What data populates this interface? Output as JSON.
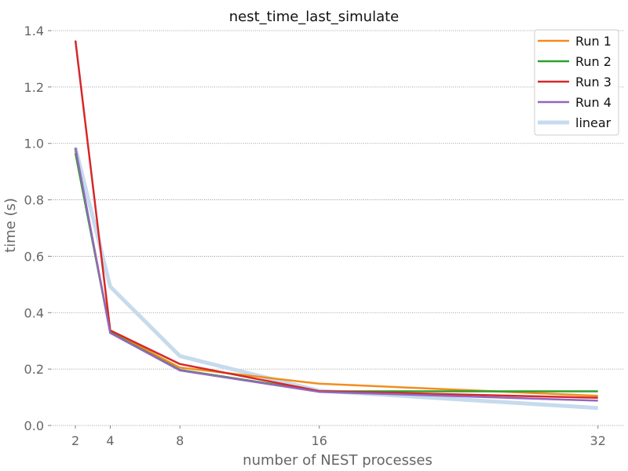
{
  "chart_data": {
    "type": "line",
    "title": "nest_time_last_simulate",
    "xlabel": "number of NEST processes",
    "ylabel": "time (s)",
    "x": [
      2,
      4,
      8,
      16,
      32
    ],
    "xticks": [
      2,
      4,
      8,
      16,
      32
    ],
    "yticks": [
      0.0,
      0.2,
      0.4,
      0.6,
      0.8,
      1.0,
      1.2,
      1.4
    ],
    "ytick_labels": [
      "0.0",
      "0.2",
      "0.4",
      "0.6",
      "0.8",
      "1.0",
      "1.2",
      "1.4"
    ],
    "ylim": [
      0,
      1.4
    ],
    "grid": "horizontal dotted",
    "legend_position": "top-right",
    "series": [
      {
        "name": "linear",
        "color": "#c6dbed",
        "width": 5,
        "values": [
          0.985,
          0.4925,
          0.246,
          0.123,
          0.062
        ]
      },
      {
        "name": "Run 1",
        "color": "#f28d1f",
        "width": 2.5,
        "values": [
          0.975,
          0.335,
          0.205,
          0.148,
          0.105
        ]
      },
      {
        "name": "Run 2",
        "color": "#2ca02c",
        "width": 2.5,
        "values": [
          0.965,
          0.33,
          0.197,
          0.121,
          0.121
        ]
      },
      {
        "name": "Run 3",
        "color": "#d62728",
        "width": 2.5,
        "values": [
          1.365,
          0.337,
          0.218,
          0.122,
          0.098
        ]
      },
      {
        "name": "Run 4",
        "color": "#9467bd",
        "width": 2.5,
        "values": [
          0.985,
          0.328,
          0.195,
          0.119,
          0.088
        ]
      }
    ],
    "legend": [
      "Run 1",
      "Run 2",
      "Run 3",
      "Run 4",
      "linear"
    ]
  }
}
